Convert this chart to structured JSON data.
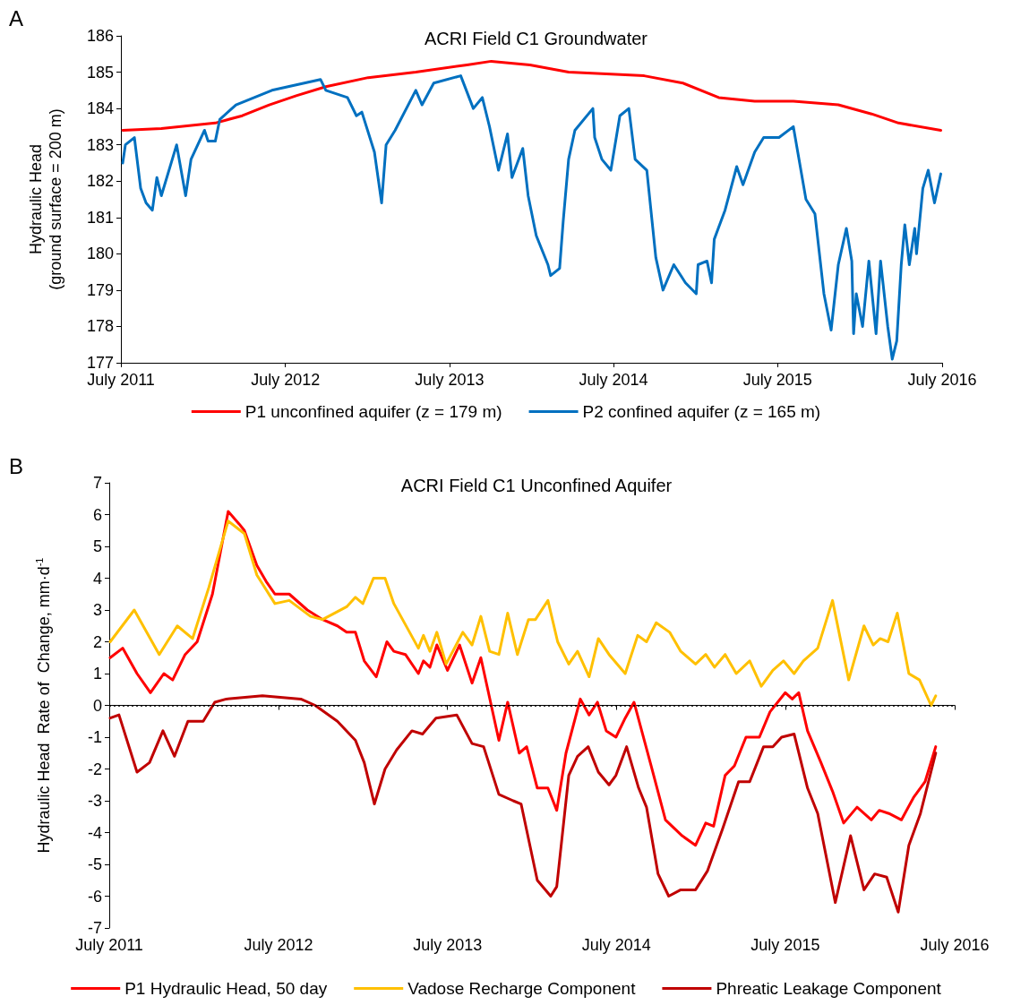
{
  "chart_data": [
    {
      "type": "line",
      "title": "ACRI Field C1 Groundwater",
      "ylabel": "Hydraulic Head\n(ground surface = 200 m)",
      "annotations": [
        "A"
      ],
      "xlim": [
        "2011-07-01",
        "2016-07-01"
      ],
      "xticks": [
        {
          "value": "2011-07-01",
          "label": "July 2011"
        },
        {
          "value": "2012-07-01",
          "label": "July 2012"
        },
        {
          "value": "2013-07-01",
          "label": "July 2013"
        },
        {
          "value": "2014-07-01",
          "label": "July 2014"
        },
        {
          "value": "2015-07-01",
          "label": "July 2015"
        },
        {
          "value": "2016-07-01",
          "label": "July 2016"
        }
      ],
      "ylim": [
        177,
        186
      ],
      "yticks": [
        177,
        178,
        179,
        180,
        181,
        182,
        183,
        184,
        185,
        186
      ],
      "legend": "bottom",
      "marker": "none",
      "line_style": "solid",
      "series": [
        {
          "name": "P1 unconfined aquifer (z = 179 m)",
          "color": "#ff0000",
          "x": [
            "2011-07-05",
            "2011-09-29",
            "2012-01-27",
            "2012-03-27",
            "2012-05-26",
            "2012-07-25",
            "2012-09-29",
            "2013-01-01",
            "2013-04-17",
            "2013-08-09",
            "2013-10-02",
            "2013-12-27",
            "2014-03-23",
            "2014-09-07",
            "2014-12-02",
            "2015-02-20",
            "2015-05-11",
            "2015-08-05",
            "2015-11-13",
            "2016-01-26",
            "2016-03-26",
            "2016-06-28"
          ],
          "values": [
            183.4,
            183.45,
            183.6,
            183.8,
            184.1,
            184.35,
            184.6,
            184.85,
            185.0,
            185.2,
            185.3,
            185.2,
            185.0,
            184.9,
            184.7,
            184.3,
            184.2,
            184.2,
            184.1,
            183.85,
            183.6,
            183.4
          ]
        },
        {
          "name": "P2 confined aquifer (z = 165 m)",
          "color": "#0070c0",
          "x": [
            "2011-07-05",
            "2011-07-11",
            "2011-07-31",
            "2011-08-14",
            "2011-08-26",
            "2011-09-09",
            "2011-09-19",
            "2011-09-29",
            "2011-11-02",
            "2011-11-22",
            "2011-12-04",
            "2012-01-03",
            "2012-01-11",
            "2012-01-27",
            "2012-02-06",
            "2012-03-13",
            "2012-06-01",
            "2012-09-17",
            "2012-09-29",
            "2012-11-16",
            "2012-12-06",
            "2012-12-18",
            "2013-01-15",
            "2013-01-31",
            "2013-02-10",
            "2013-03-02",
            "2013-04-17",
            "2013-05-01",
            "2013-05-27",
            "2013-07-26",
            "2013-08-23",
            "2013-09-12",
            "2013-09-28",
            "2013-10-18",
            "2013-11-07",
            "2013-11-17",
            "2013-12-11",
            "2013-12-23",
            "2014-01-10",
            "2014-02-05",
            "2014-02-11",
            "2014-03-03",
            "2014-03-11",
            "2014-03-23",
            "2014-04-06",
            "2014-05-16",
            "2014-05-20",
            "2014-06-05",
            "2014-06-25",
            "2014-07-15",
            "2014-08-04",
            "2014-08-18",
            "2014-09-13",
            "2014-10-03",
            "2014-10-19",
            "2014-11-12",
            "2014-12-08",
            "2015-01-01",
            "2015-01-05",
            "2015-01-25",
            "2015-02-04",
            "2015-02-10",
            "2015-03-06",
            "2015-04-01",
            "2015-04-15",
            "2015-05-11",
            "2015-05-31",
            "2015-07-04",
            "2015-08-05",
            "2015-09-02",
            "2015-09-22",
            "2015-10-12",
            "2015-10-28",
            "2015-11-13",
            "2015-12-01",
            "2015-12-13",
            "2015-12-17",
            "2015-12-23",
            "2016-01-06",
            "2016-01-20",
            "2016-02-05",
            "2016-02-15",
            "2016-03-02",
            "2016-03-12",
            "2016-03-22",
            "2016-04-01",
            "2016-04-09",
            "2016-04-19",
            "2016-05-01",
            "2016-05-05",
            "2016-05-19",
            "2016-05-31",
            "2016-06-14",
            "2016-06-28"
          ],
          "values": [
            182.5,
            183.0,
            183.2,
            181.8,
            181.4,
            181.2,
            182.1,
            181.6,
            183.0,
            181.6,
            182.6,
            183.4,
            183.1,
            183.1,
            183.7,
            184.1,
            184.5,
            184.8,
            184.5,
            184.3,
            183.8,
            183.9,
            182.8,
            181.4,
            183.0,
            183.4,
            184.5,
            184.1,
            184.7,
            184.9,
            184.0,
            184.3,
            183.5,
            182.3,
            183.3,
            182.1,
            182.9,
            181.6,
            180.5,
            179.7,
            179.4,
            179.6,
            180.9,
            182.6,
            183.4,
            184.0,
            183.2,
            182.6,
            182.3,
            183.8,
            184.0,
            182.6,
            182.3,
            179.9,
            179.0,
            179.7,
            179.2,
            178.9,
            179.7,
            179.8,
            179.2,
            180.4,
            181.2,
            182.4,
            181.9,
            182.8,
            183.2,
            183.2,
            183.5,
            181.5,
            181.1,
            178.9,
            177.9,
            179.7,
            180.7,
            179.8,
            177.8,
            178.9,
            178.0,
            179.8,
            177.8,
            179.8,
            178.0,
            177.1,
            177.6,
            179.7,
            180.8,
            179.7,
            180.7,
            180.0,
            181.8,
            182.3,
            181.4,
            182.2
          ]
        }
      ]
    },
    {
      "type": "line",
      "title": "ACRI Field C1 Unconfined Aquifer",
      "ylabel": "Hydraulic Head  Rate of  Change, mm·d$^{-1}$",
      "annotations": [
        "B"
      ],
      "xlim": [
        "2011-07-01",
        "2016-07-01"
      ],
      "xticks": [
        {
          "value": "2011-07-01",
          "label": "July 2011"
        },
        {
          "value": "2012-07-01",
          "label": "July 2012"
        },
        {
          "value": "2013-07-01",
          "label": "July 2013"
        },
        {
          "value": "2014-07-01",
          "label": "July 2014"
        },
        {
          "value": "2015-07-01",
          "label": "July 2015"
        },
        {
          "value": "2016-07-01",
          "label": "July 2016"
        }
      ],
      "ylim": [
        -7,
        7
      ],
      "yticks": [
        -7,
        -6,
        -5,
        -4,
        -3,
        -2,
        -1,
        0,
        1,
        2,
        3,
        4,
        5,
        6,
        7
      ],
      "legend": "bottom",
      "marker": "none",
      "line_style": "solid",
      "ref_lines": [
        {
          "axis": "y",
          "value": 0,
          "color": "#000000",
          "line_style": "dotted"
        }
      ],
      "series": [
        {
          "name": "P1 Hydraulic Head, 50 day",
          "color": "#ff0000",
          "x": [
            "2011-07-03",
            "2011-07-30",
            "2011-08-30",
            "2011-09-28",
            "2011-10-27",
            "2011-11-15",
            "2011-12-12",
            "2012-01-07",
            "2012-02-09",
            "2012-03-14",
            "2012-04-07",
            "2012-04-18",
            "2012-05-15",
            "2012-06-04",
            "2012-06-23",
            "2012-07-24",
            "2012-09-01",
            "2012-10-04",
            "2012-11-05",
            "2012-11-25",
            "2012-12-14",
            "2013-01-02",
            "2013-01-28",
            "2013-02-20",
            "2013-03-07",
            "2013-04-01",
            "2013-04-29",
            "2013-05-10",
            "2013-05-24",
            "2013-06-08",
            "2013-07-01",
            "2013-07-27",
            "2013-08-23",
            "2013-09-11",
            "2013-10-20",
            "2013-11-08",
            "2013-12-03",
            "2013-12-19",
            "2014-01-11",
            "2014-02-03",
            "2014-02-22",
            "2014-03-14",
            "2014-04-14",
            "2014-05-03",
            "2014-05-21",
            "2014-06-09",
            "2014-06-30",
            "2014-07-20",
            "2014-08-08",
            "2014-09-14",
            "2014-10-15",
            "2014-11-20",
            "2014-12-19",
            "2015-01-10",
            "2015-01-27",
            "2015-02-21",
            "2015-03-13",
            "2015-04-07",
            "2015-05-06",
            "2015-05-29",
            "2015-07-01",
            "2015-07-16",
            "2015-07-30",
            "2015-08-18",
            "2015-09-16",
            "2015-10-11",
            "2015-11-04",
            "2015-12-03",
            "2016-01-03",
            "2016-01-20",
            "2016-02-10",
            "2016-03-08",
            "2016-04-03",
            "2016-04-28",
            "2016-05-21"
          ],
          "values": [
            1.5,
            1.8,
            1.0,
            0.4,
            1.0,
            0.8,
            1.6,
            2.0,
            3.5,
            6.1,
            5.7,
            5.5,
            4.4,
            3.9,
            3.5,
            3.5,
            3.0,
            2.7,
            2.5,
            2.3,
            2.3,
            1.4,
            0.9,
            2.0,
            1.7,
            1.6,
            1.0,
            1.4,
            1.2,
            1.9,
            1.1,
            1.9,
            0.7,
            1.5,
            -1.1,
            0.1,
            -1.5,
            -1.3,
            -2.6,
            -2.6,
            -3.3,
            -1.5,
            0.2,
            -0.3,
            0.1,
            -0.8,
            -1.0,
            -0.4,
            0.1,
            -1.9,
            -3.6,
            -4.1,
            -4.4,
            -3.7,
            -3.8,
            -2.2,
            -1.9,
            -1.0,
            -1.0,
            -0.2,
            0.4,
            0.2,
            0.4,
            -0.8,
            -1.8,
            -2.7,
            -3.7,
            -3.2,
            -3.6,
            -3.3,
            -3.4,
            -3.6,
            -2.9,
            -2.4,
            -1.3
          ]
        },
        {
          "name": "Vadose Recharge Component",
          "color": "#ffc000",
          "x": [
            "2011-07-03",
            "2011-08-24",
            "2011-10-17",
            "2011-11-25",
            "2011-12-28",
            "2012-02-01",
            "2012-03-14",
            "2012-04-18",
            "2012-05-15",
            "2012-06-23",
            "2012-07-24",
            "2012-09-08",
            "2012-10-04",
            "2012-11-25",
            "2012-12-14",
            "2012-12-30",
            "2013-01-22",
            "2013-02-16",
            "2013-03-07",
            "2013-04-29",
            "2013-05-10",
            "2013-05-24",
            "2013-06-08",
            "2013-06-28",
            "2013-08-03",
            "2013-08-23",
            "2013-09-11",
            "2013-09-30",
            "2013-10-20",
            "2013-11-08",
            "2013-11-29",
            "2013-12-23",
            "2014-01-07",
            "2014-02-03",
            "2014-02-24",
            "2014-03-20",
            "2014-04-08",
            "2014-05-03",
            "2014-05-23",
            "2014-06-15",
            "2014-07-20",
            "2014-08-16",
            "2014-09-04",
            "2014-09-25",
            "2014-10-24",
            "2014-11-17",
            "2014-12-19",
            "2015-01-10",
            "2015-01-29",
            "2015-02-21",
            "2015-03-17",
            "2015-04-15",
            "2015-05-10",
            "2015-06-04",
            "2015-06-27",
            "2015-07-20",
            "2015-08-09",
            "2015-09-09",
            "2015-10-11",
            "2015-11-15",
            "2015-12-18",
            "2016-01-07",
            "2016-01-22",
            "2016-02-08",
            "2016-02-28",
            "2016-03-24",
            "2016-04-16",
            "2016-05-11",
            "2016-05-21"
          ],
          "values": [
            2.0,
            3.0,
            1.6,
            2.5,
            2.1,
            3.7,
            5.8,
            5.4,
            4.1,
            3.2,
            3.3,
            2.8,
            2.7,
            3.1,
            3.4,
            3.2,
            4.0,
            4.0,
            3.2,
            1.8,
            2.2,
            1.7,
            2.3,
            1.3,
            2.3,
            1.9,
            2.8,
            1.7,
            1.6,
            2.9,
            1.6,
            2.7,
            2.7,
            3.3,
            2.0,
            1.3,
            1.7,
            0.9,
            2.1,
            1.6,
            1.0,
            2.2,
            2.0,
            2.6,
            2.3,
            1.7,
            1.3,
            1.6,
            1.2,
            1.6,
            1.0,
            1.4,
            0.6,
            1.1,
            1.4,
            1.0,
            1.4,
            1.8,
            3.3,
            0.8,
            2.5,
            1.9,
            2.1,
            2.0,
            2.9,
            1.0,
            0.8,
            0.0,
            0.3
          ]
        },
        {
          "name": "Phreatic Leakage Component",
          "color": "#c00000",
          "x": [
            "2011-07-03",
            "2011-07-22",
            "2011-08-30",
            "2011-09-26",
            "2011-10-25",
            "2011-11-19",
            "2011-12-18",
            "2012-01-20",
            "2012-02-14",
            "2012-03-10",
            "2012-05-27",
            "2012-08-18",
            "2012-09-18",
            "2012-11-05",
            "2012-12-14",
            "2013-01-02",
            "2013-01-24",
            "2013-02-16",
            "2013-03-13",
            "2013-04-15",
            "2013-05-08",
            "2013-06-06",
            "2013-07-21",
            "2013-08-23",
            "2013-09-17",
            "2013-10-20",
            "2013-11-20",
            "2013-12-07",
            "2014-01-11",
            "2014-02-09",
            "2014-02-22",
            "2014-03-20",
            "2014-04-08",
            "2014-05-01",
            "2014-05-23",
            "2014-06-15",
            "2014-06-30",
            "2014-07-23",
            "2014-08-18",
            "2014-09-04",
            "2014-09-29",
            "2014-10-22",
            "2014-11-17",
            "2014-12-19",
            "2015-01-14",
            "2015-02-15",
            "2015-03-22",
            "2015-04-15",
            "2015-05-15",
            "2015-06-04",
            "2015-06-23",
            "2015-07-20",
            "2015-08-18",
            "2015-09-09",
            "2015-10-17",
            "2015-11-19",
            "2015-12-18",
            "2016-01-10",
            "2016-02-05",
            "2016-03-01",
            "2016-03-24",
            "2016-04-18",
            "2016-05-21"
          ],
          "values": [
            -0.4,
            -0.3,
            -2.1,
            -1.8,
            -0.8,
            -1.6,
            -0.5,
            -0.5,
            0.1,
            0.2,
            0.3,
            0.2,
            0.0,
            -0.5,
            -1.1,
            -1.8,
            -3.1,
            -2.0,
            -1.4,
            -0.8,
            -0.9,
            -0.4,
            -0.3,
            -1.2,
            -1.3,
            -2.8,
            -3.0,
            -3.1,
            -5.5,
            -6.0,
            -5.7,
            -2.2,
            -1.6,
            -1.3,
            -2.1,
            -2.5,
            -2.2,
            -1.3,
            -2.6,
            -3.2,
            -5.3,
            -6.0,
            -5.8,
            -5.8,
            -5.2,
            -3.9,
            -2.4,
            -2.4,
            -1.3,
            -1.3,
            -1.0,
            -0.9,
            -2.6,
            -3.4,
            -6.2,
            -4.1,
            -5.8,
            -5.3,
            -5.4,
            -6.5,
            -4.4,
            -3.4,
            -1.5
          ]
        }
      ]
    }
  ]
}
